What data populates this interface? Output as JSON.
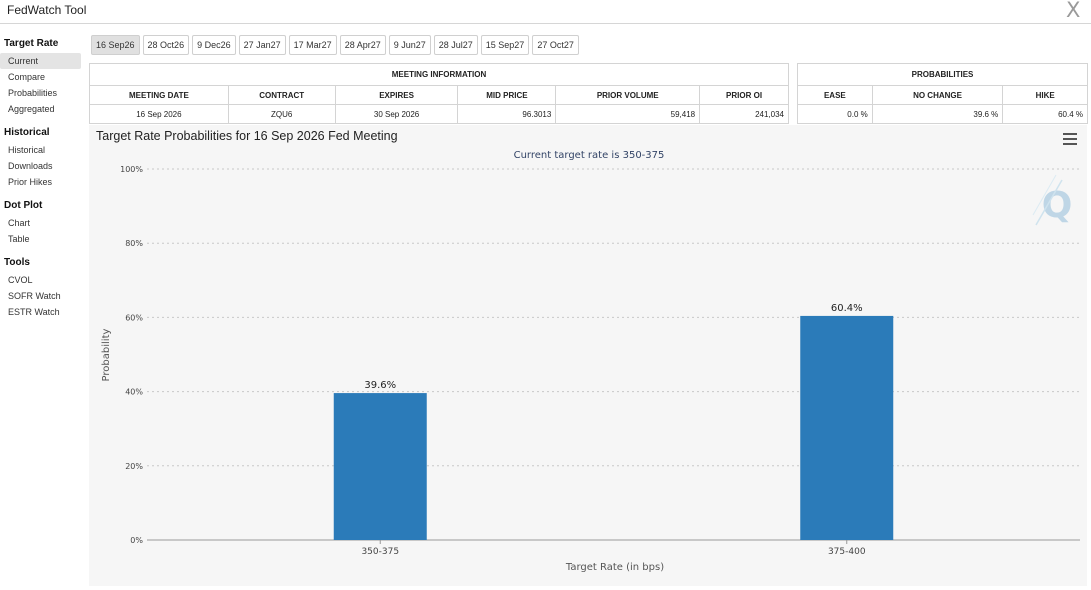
{
  "app": {
    "title": "FedWatch Tool",
    "close_glyph": "X"
  },
  "sidebar": {
    "sections": [
      {
        "title": "Target Rate",
        "items": [
          "Current",
          "Compare",
          "Probabilities",
          "Aggregated"
        ]
      },
      {
        "title": "Historical",
        "items": [
          "Historical",
          "Downloads",
          "Prior Hikes"
        ]
      },
      {
        "title": "Dot Plot",
        "items": [
          "Chart",
          "Table"
        ]
      },
      {
        "title": "Tools",
        "items": [
          "CVOL",
          "SOFR Watch",
          "ESTR Watch"
        ]
      }
    ],
    "active_item": "Current"
  },
  "meeting_tabs": [
    "16 Sep26",
    "28 Oct26",
    "9 Dec26",
    "27 Jan27",
    "17 Mar27",
    "28 Apr27",
    "9 Jun27",
    "28 Jul27",
    "15 Sep27",
    "27 Oct27"
  ],
  "active_tab": "16 Sep26",
  "meeting_info": {
    "header": "MEETING INFORMATION",
    "columns": [
      "MEETING DATE",
      "CONTRACT",
      "EXPIRES",
      "MID PRICE",
      "PRIOR VOLUME",
      "PRIOR OI"
    ],
    "row": [
      "16 Sep 2026",
      "ZQU6",
      "30 Sep 2026",
      "96.3013",
      "59,418",
      "241,034"
    ]
  },
  "probabilities": {
    "header": "PROBABILITIES",
    "columns": [
      "EASE",
      "NO CHANGE",
      "HIKE"
    ],
    "row": [
      "0.0 %",
      "39.6 %",
      "60.4 %"
    ]
  },
  "chart": {
    "title": "Target Rate Probabilities for 16 Sep 2026 Fed Meeting",
    "subtitle": "Current target rate is 350-375",
    "watermark": "Q",
    "menu_icon": "hamburger-menu-icon"
  },
  "chart_data": {
    "type": "bar",
    "title": "Target Rate Probabilities for 16 Sep 2026 Fed Meeting",
    "subtitle": "Current target rate is 350-375",
    "categories": [
      "350-375",
      "375-400"
    ],
    "values": [
      39.6,
      60.4
    ],
    "data_labels": [
      "39.6%",
      "60.4%"
    ],
    "xlabel": "Target Rate (in bps)",
    "ylabel": "Probability",
    "ylim": [
      0,
      100
    ],
    "yticks": [
      "0%",
      "20%",
      "40%",
      "60%",
      "80%",
      "100%"
    ],
    "grid": true,
    "bar_color": "#2b7bb9"
  }
}
